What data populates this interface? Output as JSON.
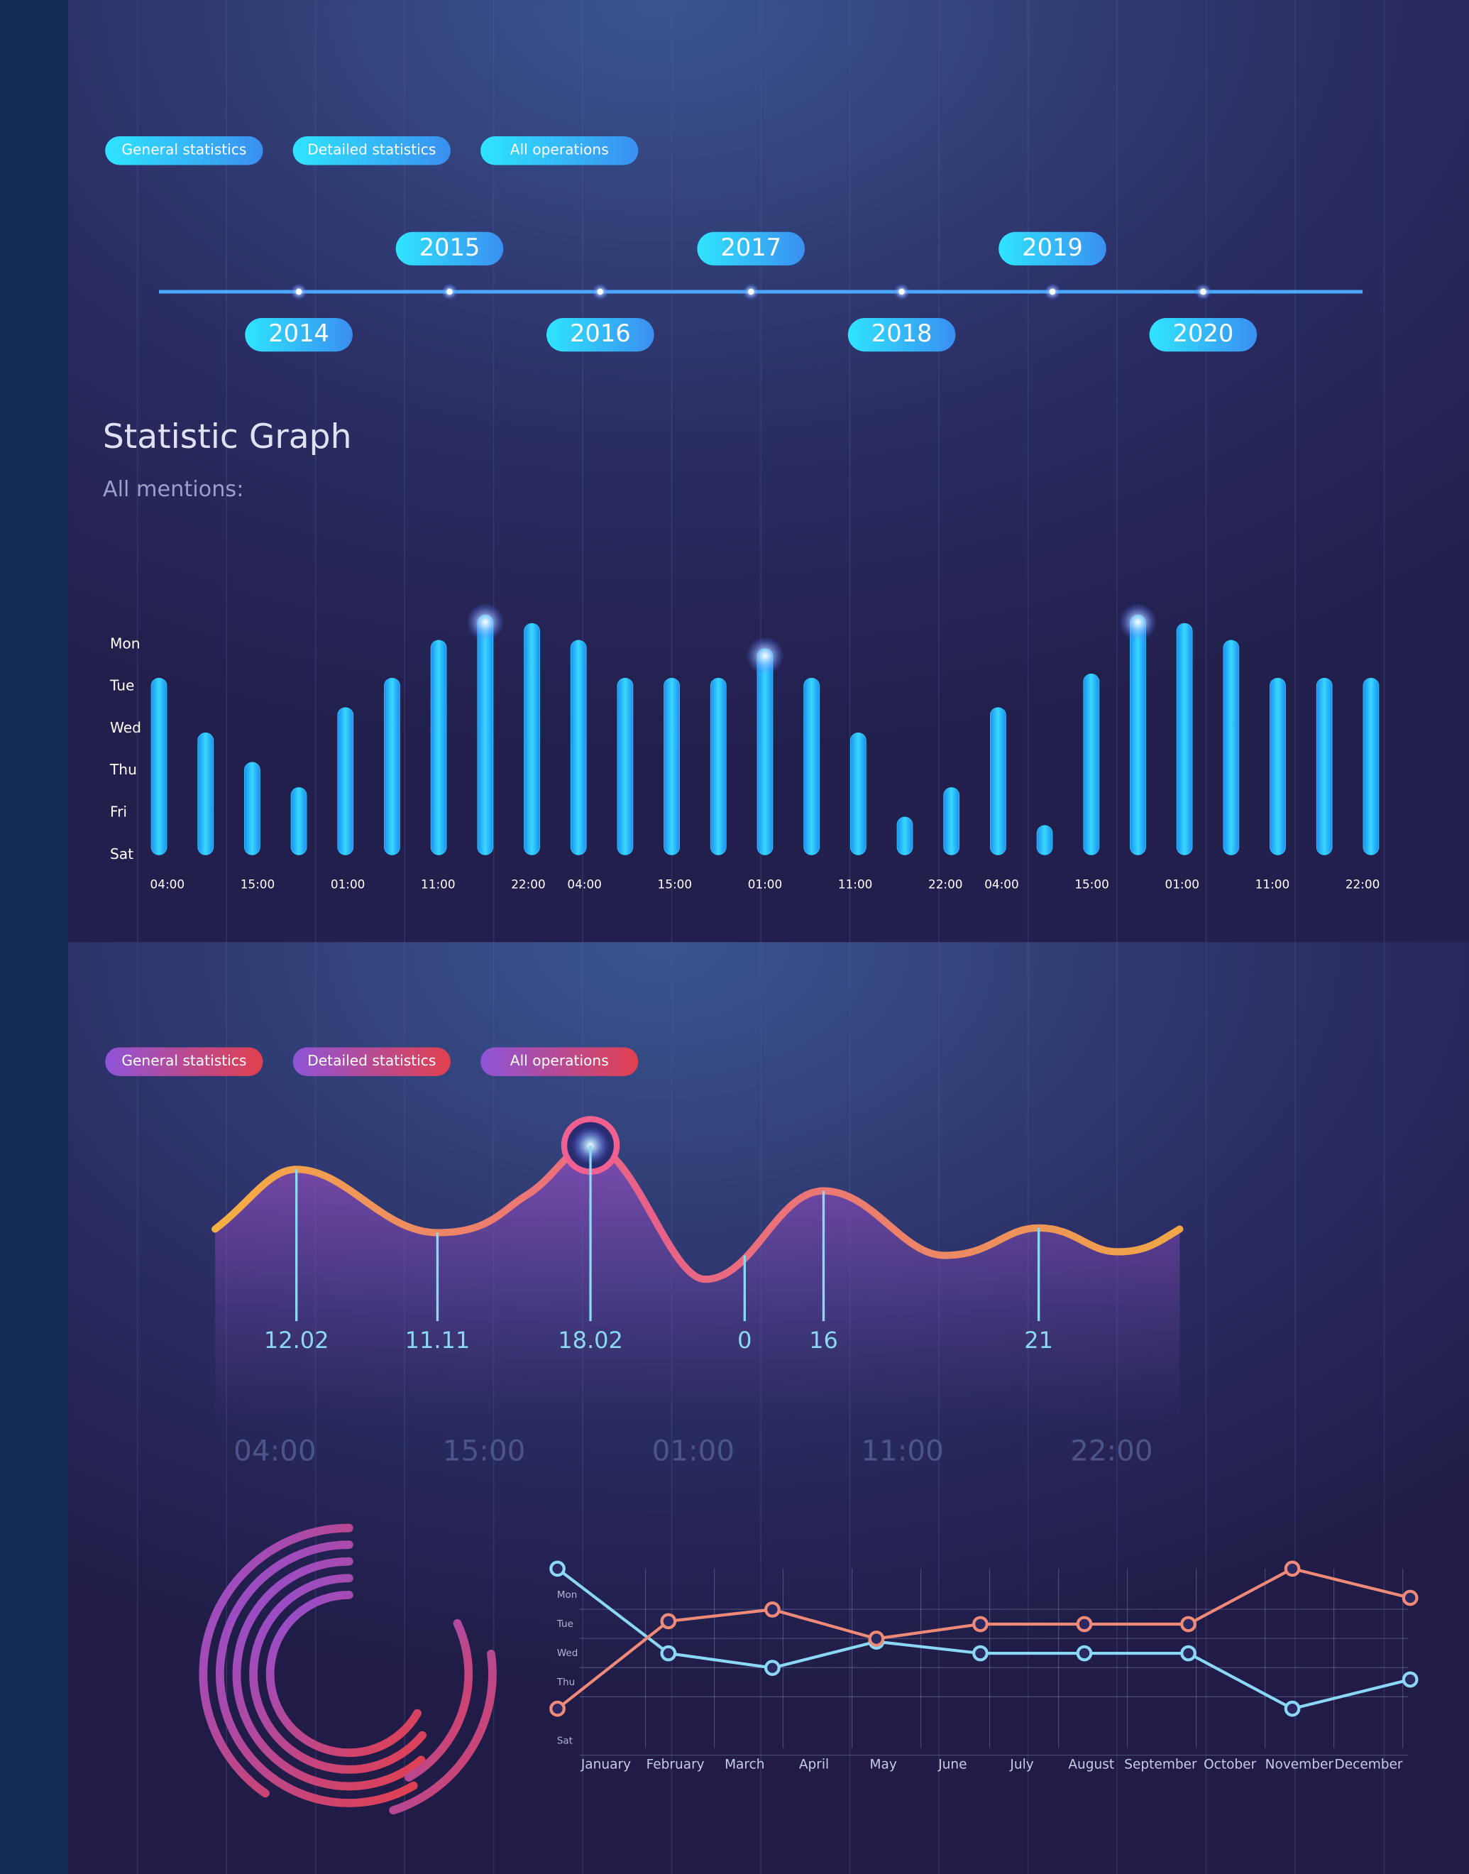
{
  "tabs": [
    "General statistics",
    "Detailed statistics",
    "All operations"
  ],
  "timeline": [
    "2014",
    "2015",
    "2016",
    "2017",
    "2018",
    "2019",
    "2020"
  ],
  "heading": {
    "title": "Statistic Graph",
    "subtitle": "All mentions:"
  },
  "lower_tabs": [
    "General statistics",
    "Detailed statistics",
    "All operations"
  ],
  "chart_data": [
    {
      "type": "bar",
      "values": [
        4.2,
        2.9,
        2.2,
        1.6,
        3.5,
        4.2,
        5.1,
        5.7,
        5.5,
        5.1,
        4.2,
        4.2,
        4.2,
        4.9,
        4.2,
        2.9,
        0.9,
        1.6,
        3.5,
        0.7,
        4.3,
        5.7,
        5.5,
        5.1,
        4.2,
        4.2,
        4.2
      ],
      "x_labels": [
        "04:00",
        "15:00",
        "01:00",
        "11:00",
        "22:00",
        "04:00",
        "15:00",
        "01:00",
        "11:00",
        "22:00",
        "04:00",
        "15:00",
        "01:00",
        "11:00",
        "22:00"
      ],
      "ylim": [
        0,
        5.8
      ],
      "yticks": [
        {
          "value": 0,
          "label": "Sat"
        },
        {
          "value": 1,
          "label": "Fri"
        },
        {
          "value": 2,
          "label": "Thu"
        },
        {
          "value": 3,
          "label": "Wed"
        },
        {
          "value": 4,
          "label": "Tue"
        },
        {
          "value": 5,
          "label": "Mon"
        }
      ],
      "color": "#2fc8ff"
    },
    {
      "type": "curve",
      "annotations": [
        12.02,
        11.11,
        18.02,
        0,
        16,
        21
      ],
      "categories": [
        "04:00",
        "15:00",
        "01:00",
        "11:00",
        "22:00"
      ],
      "color": "#f0a050"
    },
    {
      "type": "line",
      "categories": [
        "January",
        "February",
        "March",
        "April",
        "May",
        "June",
        "July",
        "August",
        "September",
        "October",
        "November",
        "December"
      ],
      "x": [
        -0.7,
        0.9,
        2.4,
        3.9,
        5.4,
        6.9,
        8.4,
        9.9,
        11.6
      ],
      "ylim": [
        0,
        6
      ],
      "yticks": [
        {
          "value": 5,
          "label": "Mon"
        },
        {
          "value": 4,
          "label": "Tue"
        },
        {
          "value": 3,
          "label": "Wed"
        },
        {
          "value": 2,
          "label": "Thu"
        },
        {
          "value": 0,
          "label": "Sat"
        }
      ],
      "grid": true,
      "series": [
        {
          "color": "#8ad8f5",
          "values": [
            5.9,
            3.0,
            2.5,
            3.4,
            3.0,
            3.0,
            3.0,
            1.1,
            2.1
          ]
        },
        {
          "color": "#f08a78",
          "values": [
            1.1,
            4.1,
            4.5,
            3.5,
            4.0,
            4.0,
            4.0,
            5.9,
            4.9
          ]
        }
      ]
    }
  ]
}
